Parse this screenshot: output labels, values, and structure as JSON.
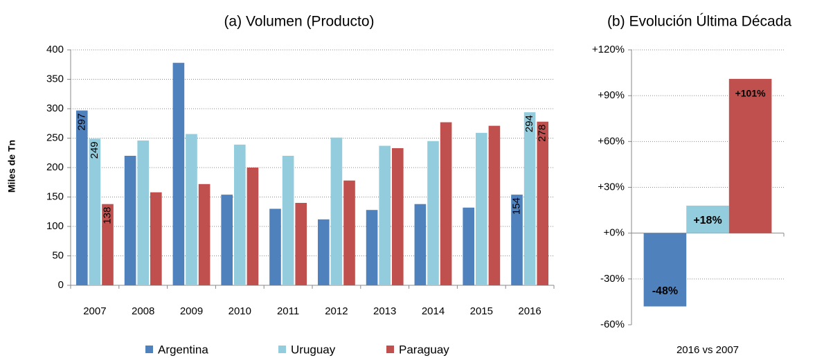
{
  "chart_data": [
    {
      "type": "bar",
      "title": "(a)  Volumen (Producto)",
      "y_label": "Miles de Tn",
      "categories": [
        "2007",
        "2008",
        "2009",
        "2010",
        "2011",
        "2012",
        "2013",
        "2014",
        "2015",
        "2016"
      ],
      "series": [
        {
          "name": "Argentina",
          "color": "#4f81bd",
          "values": [
            297,
            220,
            378,
            154,
            130,
            112,
            128,
            138,
            132,
            154
          ]
        },
        {
          "name": "Uruguay",
          "color": "#93cddd",
          "values": [
            249,
            246,
            257,
            239,
            220,
            251,
            237,
            245,
            259,
            294
          ]
        },
        {
          "name": "Paraguay",
          "color": "#c0504d",
          "values": [
            138,
            158,
            172,
            200,
            140,
            178,
            233,
            277,
            271,
            278
          ]
        }
      ],
      "data_label_indices": [
        0,
        9
      ],
      "ylim": [
        0,
        400
      ],
      "yticks": [
        0,
        50,
        100,
        150,
        200,
        250,
        300,
        350,
        400
      ],
      "grid": true,
      "legend": "bottom"
    },
    {
      "type": "bar",
      "title": "(b)  Evolución Última Década",
      "categories": [
        "2016 vs 2007"
      ],
      "series": [
        {
          "color": "#4f81bd",
          "values": [
            -48
          ],
          "value_labels": [
            "-48%"
          ]
        },
        {
          "color": "#93cddd",
          "values": [
            18
          ],
          "value_labels": [
            "+18%"
          ]
        },
        {
          "color": "#c0504d",
          "values": [
            101
          ],
          "value_labels": [
            "+101%"
          ]
        }
      ],
      "ylim": [
        -60,
        120
      ],
      "yticks": [
        {
          "value": -60,
          "label": "-60%"
        },
        {
          "value": -30,
          "label": "-30%"
        },
        {
          "value": 0,
          "label": "+0%"
        },
        {
          "value": 30,
          "label": "+30%"
        },
        {
          "value": 60,
          "label": "+60%"
        },
        {
          "value": 90,
          "label": "+90%"
        },
        {
          "value": 120,
          "label": "+120%"
        }
      ],
      "grid": true
    }
  ]
}
